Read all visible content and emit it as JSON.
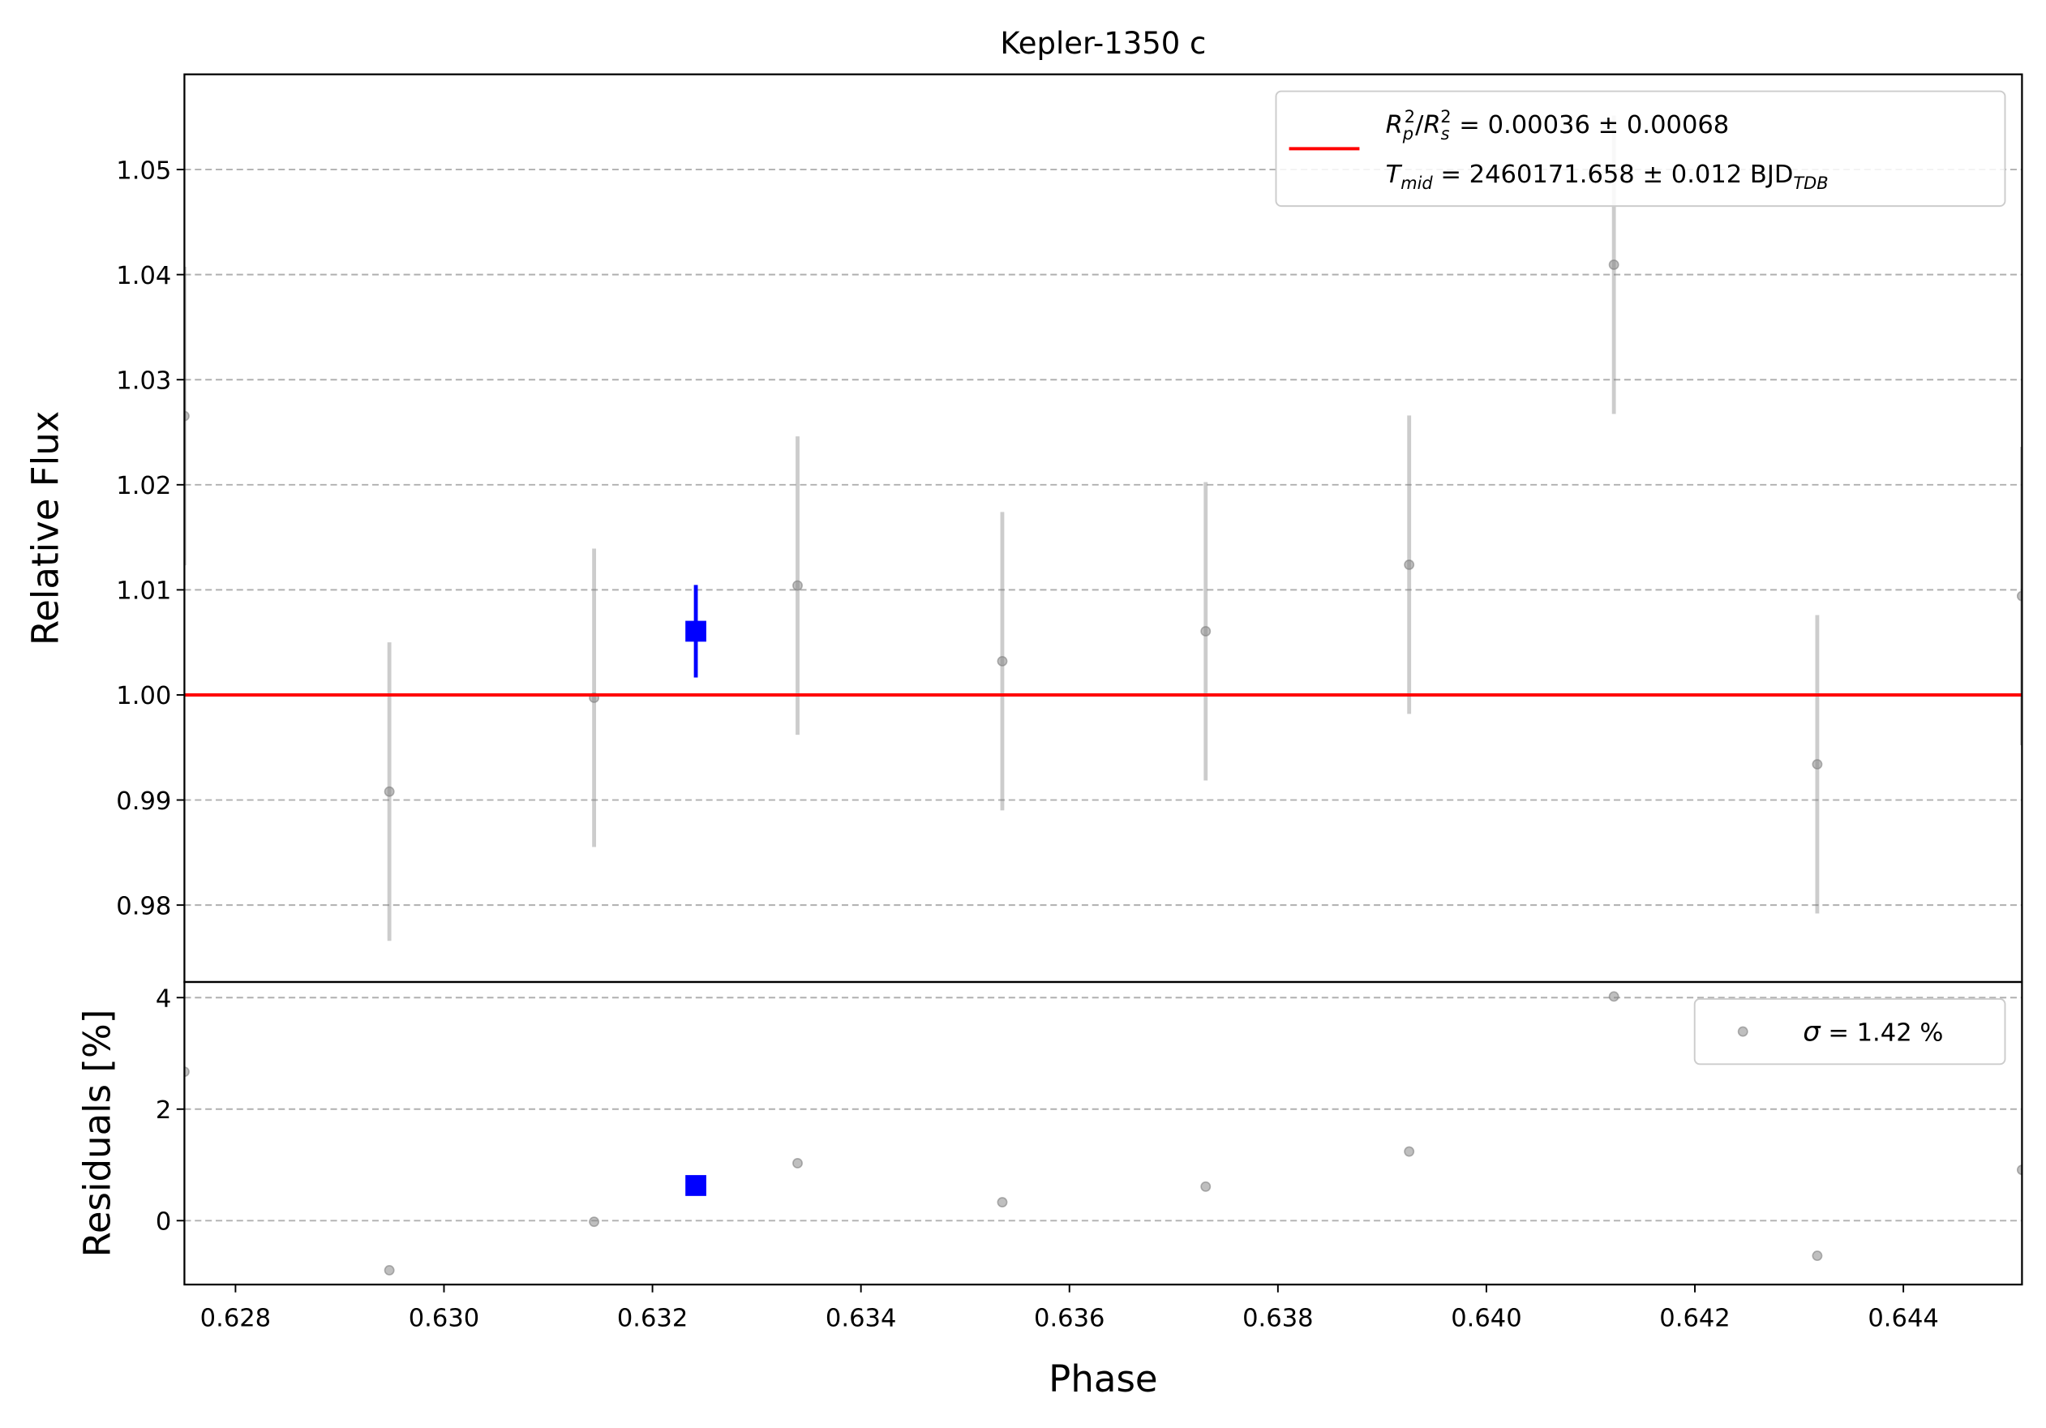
{
  "chart_data": [
    {
      "type": "errorbar",
      "title": "Kepler-1350 c",
      "ylabel": "Relative Flux",
      "xlim": [
        0.62751,
        0.645138
      ],
      "ylim": [
        0.97268,
        1.05906
      ],
      "yticks": [
        0.98,
        0.99,
        {
          "value": 1.0,
          "label": "1.00"
        },
        1.01,
        1.02,
        1.03,
        1.04,
        1.05
      ],
      "grid": true,
      "legend": "upper right",
      "series": [
        {
          "color": "#808080",
          "marker": "circle",
          "x": [
            0.62751,
            0.629476,
            0.63144,
            0.633392,
            0.635356,
            0.637307,
            0.639259,
            0.641223,
            0.643174,
            0.645138
          ],
          "values": [
            1.02654,
            0.9908,
            0.99973,
            1.01041,
            1.00321,
            1.00606,
            1.01239,
            1.04094,
            0.9934,
            1.00941
          ],
          "errors": [
            0.0142,
            0.0142,
            0.0142,
            0.0142,
            0.0142,
            0.0142,
            0.0142,
            0.0142,
            0.0142,
            0.0142
          ]
        },
        {
          "color": "#0000ff",
          "marker": "square",
          "x": [
            0.632416
          ],
          "values": [
            1.00606
          ],
          "errors": [
            0.0044
          ]
        },
        {
          "color": "#ff0000",
          "marker": "line",
          "x": [
            0.62751,
            0.645138
          ],
          "values": [
            1.0,
            1.0
          ],
          "legend_label": [
            [
              {
                "text": "R",
                "style": "italic"
              },
              {
                "text": "p",
                "style": "sub"
              },
              {
                "text": "2",
                "style": "sup"
              },
              {
                "text": "/"
              },
              {
                "text": "R",
                "style": "italic"
              },
              {
                "text": "s",
                "style": "sub"
              },
              {
                "text": "2",
                "style": "sup"
              },
              {
                "text": " = 0.00036 ± 0.00068"
              }
            ],
            [
              {
                "text": "T",
                "style": "italic"
              },
              {
                "text": "mid",
                "style": "sub"
              },
              {
                "text": " = 2460171.658 ± 0.012 BJD"
              },
              {
                "text": "TDB",
                "style": "sub"
              }
            ]
          ]
        }
      ]
    },
    {
      "type": "scatter",
      "xlabel": "Phase",
      "ylabel": "Residuals [%]",
      "xlim": [
        0.62751,
        0.645138
      ],
      "ylim": [
        -1.146,
        4.28
      ],
      "xticks": [
        0.628,
        {
          "value": 0.63,
          "label": "0.630"
        },
        0.632,
        0.634,
        0.636,
        0.638,
        {
          "value": 0.64,
          "label": "0.640"
        },
        0.642,
        0.644
      ],
      "yticks": [
        0,
        2,
        4
      ],
      "grid": true,
      "legend": "upper right",
      "series": [
        {
          "color": "#808080",
          "marker": "circle",
          "x": [
            0.62751,
            0.629476,
            0.63144,
            0.633392,
            0.635356,
            0.637307,
            0.639259,
            0.641223,
            0.643174,
            0.645138
          ],
          "values": [
            2.67,
            -0.89,
            -0.02,
            1.03,
            0.33,
            0.61,
            1.24,
            4.02,
            -0.63,
            0.91
          ],
          "legend_label": [
            [
              {
                "text": "σ",
                "style": "italic"
              },
              {
                "text": " = 1.42 %"
              }
            ]
          ]
        },
        {
          "color": "#0000ff",
          "marker": "square",
          "x": [
            0.632416
          ],
          "values": [
            0.63
          ]
        }
      ]
    }
  ]
}
